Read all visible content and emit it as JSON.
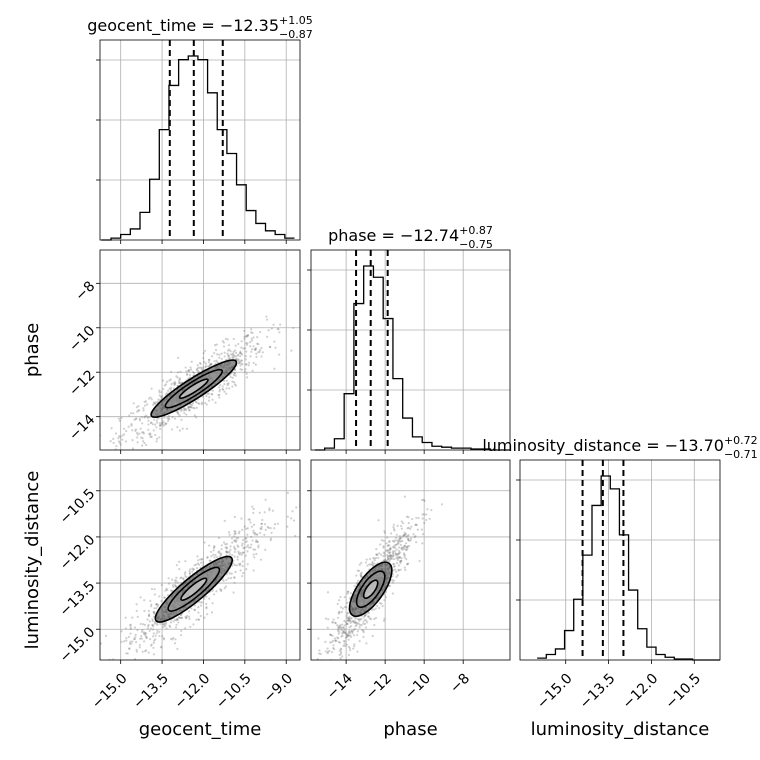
{
  "chart_data": [
    {
      "type": "histogram",
      "parameter": "geocent_time",
      "title": "geocent_time = −12.35",
      "title_sup": "+1.05",
      "title_sub": "−0.87",
      "xlim": [
        -15.75,
        -8.5
      ],
      "ylim": [
        0,
        1.0
      ],
      "quantiles": [
        -13.22,
        -12.35,
        -11.3
      ],
      "bins": [
        -15.7,
        -15.35,
        -15.0,
        -14.65,
        -14.3,
        -13.95,
        -13.6,
        -13.25,
        -12.9,
        -12.55,
        -12.2,
        -11.85,
        -11.5,
        -11.15,
        -10.8,
        -10.45,
        -10.1,
        -9.75,
        -9.4,
        -9.05,
        -8.7
      ],
      "counts": [
        0.0,
        0.01,
        0.03,
        0.06,
        0.15,
        0.33,
        0.6,
        0.84,
        0.98,
        1.0,
        0.98,
        0.8,
        0.6,
        0.47,
        0.3,
        0.16,
        0.09,
        0.05,
        0.03,
        0.01
      ]
    },
    {
      "type": "histogram",
      "parameter": "phase",
      "title": "phase = −12.74",
      "title_sup": "+0.87",
      "title_sub": "−0.75",
      "xlim": [
        -15.8,
        -5.6
      ],
      "ylim": [
        0,
        1.0
      ],
      "quantiles": [
        -13.49,
        -12.74,
        -11.87
      ],
      "bins": [
        -15.6,
        -15.1,
        -14.6,
        -14.1,
        -13.6,
        -13.1,
        -12.6,
        -12.1,
        -11.6,
        -11.1,
        -10.6,
        -10.1,
        -9.6,
        -9.1,
        -8.6,
        -8.1,
        -7.6,
        -7.1,
        -6.6,
        -6.1,
        -5.6
      ],
      "counts": [
        0.0,
        0.01,
        0.06,
        0.3,
        0.78,
        0.98,
        0.92,
        0.7,
        0.38,
        0.17,
        0.07,
        0.04,
        0.02,
        0.015,
        0.01,
        0.01,
        0.005,
        0.005,
        0.0,
        0.0
      ]
    },
    {
      "type": "histogram",
      "parameter": "luminosity_distance",
      "title": "luminosity_distance = −13.70",
      "title_sup": "+0.72",
      "title_sub": "−0.71",
      "xlim": [
        -16.6,
        -9.6
      ],
      "ylim": [
        0,
        1.0
      ],
      "quantiles": [
        -14.41,
        -13.7,
        -12.98
      ],
      "bins": [
        -16.0,
        -15.68,
        -15.36,
        -15.04,
        -14.72,
        -14.4,
        -14.08,
        -13.76,
        -13.44,
        -13.12,
        -12.8,
        -12.48,
        -12.16,
        -11.84,
        -11.52,
        -11.2,
        -10.88,
        -10.56,
        -10.24,
        -9.92,
        -9.6
      ],
      "counts": [
        0.01,
        0.03,
        0.06,
        0.16,
        0.33,
        0.57,
        0.84,
        1.0,
        0.93,
        0.68,
        0.38,
        0.17,
        0.07,
        0.03,
        0.015,
        0.005,
        0.005,
        0.0,
        0.0,
        0.0
      ]
    },
    {
      "type": "scatter",
      "x_parameter": "geocent_time",
      "y_parameter": "phase",
      "xlim": [
        -15.75,
        -8.5
      ],
      "ylim": [
        -15.5,
        -6.5
      ],
      "center": [
        -12.35,
        -12.74
      ],
      "slope": 0.8,
      "spread": [
        1.0,
        0.45
      ],
      "contour_levels": [
        0.5,
        1.0,
        1.5
      ]
    },
    {
      "type": "scatter",
      "x_parameter": "geocent_time",
      "y_parameter": "luminosity_distance",
      "xlim": [
        -15.75,
        -8.5
      ],
      "ylim": [
        -16.0,
        -9.5
      ],
      "center": [
        -12.35,
        -13.7
      ],
      "slope": 0.75,
      "spread": [
        1.0,
        0.38
      ],
      "contour_levels": [
        0.5,
        1.0,
        1.5
      ]
    },
    {
      "type": "scatter",
      "x_parameter": "phase",
      "y_parameter": "luminosity_distance",
      "xlim": [
        -15.8,
        -5.6
      ],
      "ylim": [
        -16.0,
        -9.5
      ],
      "center": [
        -12.74,
        -13.7
      ],
      "slope": 0.9,
      "spread": [
        0.85,
        0.42
      ],
      "contour_levels": [
        0.5,
        1.0,
        1.5
      ]
    }
  ],
  "axes": {
    "geocent_time": {
      "label": "geocent_time",
      "ticks": [
        -15.0,
        -13.5,
        -12.0,
        -10.5,
        -9.0
      ],
      "tick_labels": [
        "−15.0",
        "−13.5",
        "−12.0",
        "−10.5",
        "−9.0"
      ]
    },
    "phase_x": {
      "label": "phase",
      "ticks": [
        -14,
        -12,
        -10,
        -8
      ],
      "tick_labels": [
        "−14",
        "−12",
        "−10",
        "−8"
      ]
    },
    "phase_y": {
      "label": "phase",
      "ticks": [
        -14,
        -12,
        -10,
        -8
      ],
      "tick_labels": [
        "−14",
        "−12",
        "−10",
        "−8"
      ]
    },
    "luminosity_distance_x": {
      "label": "luminosity_distance",
      "ticks": [
        -15.0,
        -13.5,
        -12.0,
        -10.5
      ],
      "tick_labels": [
        "−15.0",
        "−13.5",
        "−12.0",
        "−10.5"
      ]
    },
    "luminosity_distance_y": {
      "label": "luminosity_distance",
      "ticks": [
        -15.0,
        -13.5,
        -12.0,
        -10.5
      ],
      "tick_labels": [
        "−15.0",
        "−13.5",
        "−12.0",
        "−10.5"
      ]
    }
  },
  "grid": true,
  "colors": {
    "line": "#000000",
    "grid": "#b0b0b0",
    "points": "#808080"
  }
}
